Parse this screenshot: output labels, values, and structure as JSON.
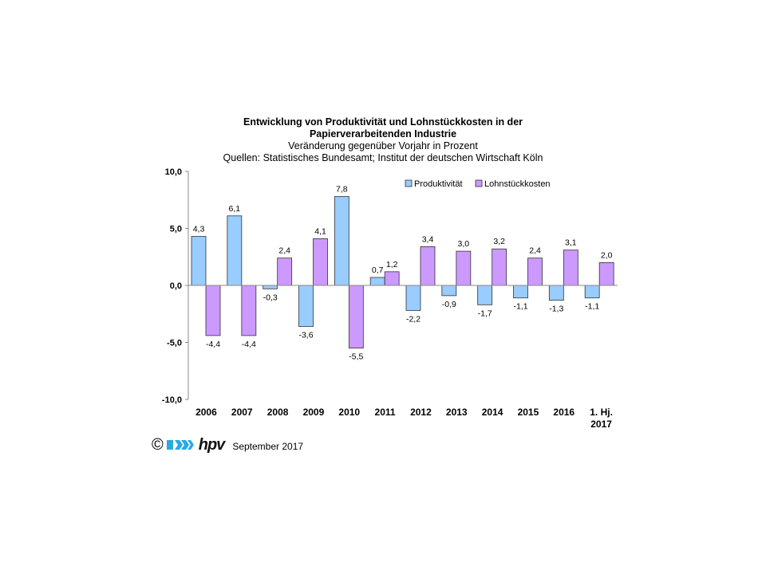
{
  "title_line1": "Entwicklung von Produktivität und Lohnstückkosten in der",
  "title_line2": "Papierverarbeitenden Industrie",
  "subtitle": "Veränderung gegenüber Vorjahr in Prozent",
  "source": "Quellen: Statistisches Bundesamt; Institut der deutschen Wirtschaft Köln",
  "footer": {
    "copyright": "©",
    "logo_text": "hpv",
    "date": "September 2017"
  },
  "colors": {
    "produktivitaet": "#99ccff",
    "lohnstueckkosten": "#cc99ff",
    "logo_blue": "#29a9e1"
  },
  "chart_data": {
    "type": "bar",
    "categories": [
      "2006",
      "2007",
      "2008",
      "2009",
      "2010",
      "2011",
      "2012",
      "2013",
      "2014",
      "2015",
      "2016",
      "1. Hj. 2017"
    ],
    "series": [
      {
        "name": "Produktivität",
        "values": [
          4.3,
          6.1,
          -0.3,
          -3.6,
          7.8,
          0.7,
          -2.2,
          -0.9,
          -1.7,
          -1.1,
          -1.3,
          -1.1
        ],
        "labels": [
          "4,3",
          "6,1",
          "-0,3",
          "-3,6",
          "7,8",
          "0,7",
          "-2,2",
          "-0,9",
          "-1,7",
          "-1,1",
          "-1,3",
          "-1,1"
        ]
      },
      {
        "name": "Lohnstückkosten",
        "values": [
          -4.4,
          -4.4,
          2.4,
          4.1,
          -5.5,
          1.2,
          3.4,
          3.0,
          3.2,
          2.4,
          3.1,
          2.0
        ],
        "labels": [
          "-4,4",
          "-4,4",
          "2,4",
          "4,1",
          "-5,5",
          "1,2",
          "3,4",
          "3,0",
          "3,2",
          "2,4",
          "3,1",
          "2,0"
        ]
      }
    ],
    "ylim": [
      -10,
      10
    ],
    "yticks": [
      10,
      5,
      0,
      -5,
      -10
    ],
    "ytick_labels": [
      "10,0",
      "5,0",
      "0,0",
      "-5,0",
      "-10,0"
    ],
    "grid": false,
    "legend": "top-right"
  }
}
